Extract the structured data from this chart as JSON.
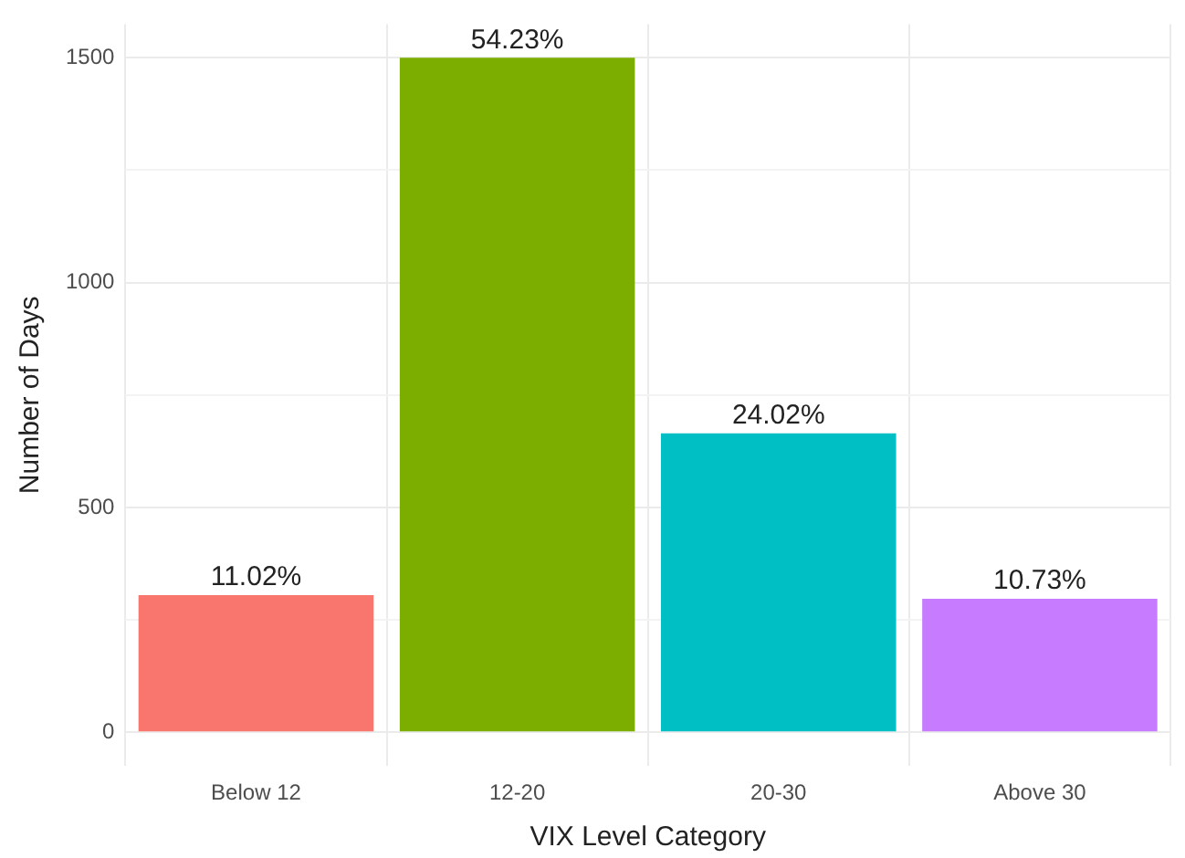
{
  "chart_data": {
    "type": "bar",
    "xlabel": "VIX Level Category",
    "ylabel": "Number of Days",
    "categories": [
      "Below 12",
      "12-20",
      "20-30",
      "Above 30"
    ],
    "values": [
      305,
      1500,
      665,
      297
    ],
    "colors": [
      "#f8766d",
      "#7cae00",
      "#00bfc4",
      "#c77cff"
    ],
    "annotations": [
      {
        "text": "11.02%",
        "x": "Below 12",
        "y": 305
      },
      {
        "text": "54.23%",
        "x": "12-20",
        "y": 1500
      },
      {
        "text": "24.02%",
        "x": "20-30",
        "y": 665
      },
      {
        "text": "10.73%",
        "x": "Above 30",
        "y": 297
      }
    ],
    "ylim": [
      -75,
      1575
    ],
    "yticks": [
      0,
      {
        "value": 250,
        "label": null
      },
      500,
      {
        "value": 750,
        "label": null
      },
      1000,
      {
        "value": 1250,
        "label": null
      },
      1500
    ],
    "grid": true
  }
}
